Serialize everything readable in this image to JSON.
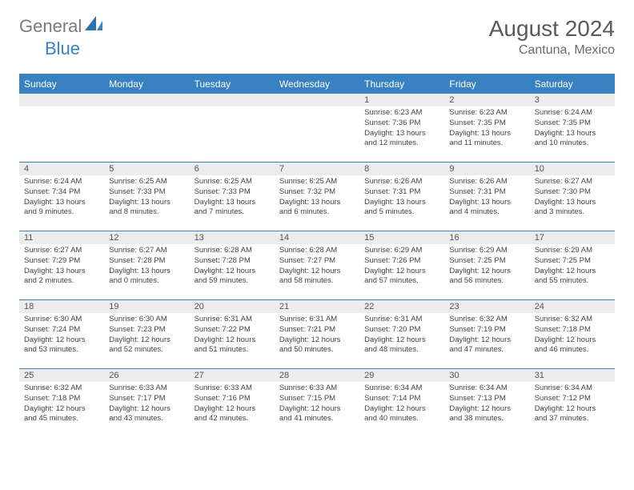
{
  "brand": {
    "name1": "General",
    "name2": "Blue"
  },
  "title": "August 2024",
  "location": "Cantuna, Mexico",
  "colors": {
    "accent": "#3a81c2",
    "header_text": "#ffffff",
    "daynum_bg": "#ececec",
    "text": "#444444",
    "background": "#ffffff",
    "logo_gray": "#7a7a7a"
  },
  "days_of_week": [
    "Sunday",
    "Monday",
    "Tuesday",
    "Wednesday",
    "Thursday",
    "Friday",
    "Saturday"
  ],
  "weeks": [
    [
      {
        "n": "",
        "sunrise": "",
        "sunset": "",
        "daylight": ""
      },
      {
        "n": "",
        "sunrise": "",
        "sunset": "",
        "daylight": ""
      },
      {
        "n": "",
        "sunrise": "",
        "sunset": "",
        "daylight": ""
      },
      {
        "n": "",
        "sunrise": "",
        "sunset": "",
        "daylight": ""
      },
      {
        "n": "1",
        "sunrise": "Sunrise: 6:23 AM",
        "sunset": "Sunset: 7:36 PM",
        "daylight": "Daylight: 13 hours and 12 minutes."
      },
      {
        "n": "2",
        "sunrise": "Sunrise: 6:23 AM",
        "sunset": "Sunset: 7:35 PM",
        "daylight": "Daylight: 13 hours and 11 minutes."
      },
      {
        "n": "3",
        "sunrise": "Sunrise: 6:24 AM",
        "sunset": "Sunset: 7:35 PM",
        "daylight": "Daylight: 13 hours and 10 minutes."
      }
    ],
    [
      {
        "n": "4",
        "sunrise": "Sunrise: 6:24 AM",
        "sunset": "Sunset: 7:34 PM",
        "daylight": "Daylight: 13 hours and 9 minutes."
      },
      {
        "n": "5",
        "sunrise": "Sunrise: 6:25 AM",
        "sunset": "Sunset: 7:33 PM",
        "daylight": "Daylight: 13 hours and 8 minutes."
      },
      {
        "n": "6",
        "sunrise": "Sunrise: 6:25 AM",
        "sunset": "Sunset: 7:33 PM",
        "daylight": "Daylight: 13 hours and 7 minutes."
      },
      {
        "n": "7",
        "sunrise": "Sunrise: 6:25 AM",
        "sunset": "Sunset: 7:32 PM",
        "daylight": "Daylight: 13 hours and 6 minutes."
      },
      {
        "n": "8",
        "sunrise": "Sunrise: 6:26 AM",
        "sunset": "Sunset: 7:31 PM",
        "daylight": "Daylight: 13 hours and 5 minutes."
      },
      {
        "n": "9",
        "sunrise": "Sunrise: 6:26 AM",
        "sunset": "Sunset: 7:31 PM",
        "daylight": "Daylight: 13 hours and 4 minutes."
      },
      {
        "n": "10",
        "sunrise": "Sunrise: 6:27 AM",
        "sunset": "Sunset: 7:30 PM",
        "daylight": "Daylight: 13 hours and 3 minutes."
      }
    ],
    [
      {
        "n": "11",
        "sunrise": "Sunrise: 6:27 AM",
        "sunset": "Sunset: 7:29 PM",
        "daylight": "Daylight: 13 hours and 2 minutes."
      },
      {
        "n": "12",
        "sunrise": "Sunrise: 6:27 AM",
        "sunset": "Sunset: 7:28 PM",
        "daylight": "Daylight: 13 hours and 0 minutes."
      },
      {
        "n": "13",
        "sunrise": "Sunrise: 6:28 AM",
        "sunset": "Sunset: 7:28 PM",
        "daylight": "Daylight: 12 hours and 59 minutes."
      },
      {
        "n": "14",
        "sunrise": "Sunrise: 6:28 AM",
        "sunset": "Sunset: 7:27 PM",
        "daylight": "Daylight: 12 hours and 58 minutes."
      },
      {
        "n": "15",
        "sunrise": "Sunrise: 6:29 AM",
        "sunset": "Sunset: 7:26 PM",
        "daylight": "Daylight: 12 hours and 57 minutes."
      },
      {
        "n": "16",
        "sunrise": "Sunrise: 6:29 AM",
        "sunset": "Sunset: 7:25 PM",
        "daylight": "Daylight: 12 hours and 56 minutes."
      },
      {
        "n": "17",
        "sunrise": "Sunrise: 6:29 AM",
        "sunset": "Sunset: 7:25 PM",
        "daylight": "Daylight: 12 hours and 55 minutes."
      }
    ],
    [
      {
        "n": "18",
        "sunrise": "Sunrise: 6:30 AM",
        "sunset": "Sunset: 7:24 PM",
        "daylight": "Daylight: 12 hours and 53 minutes."
      },
      {
        "n": "19",
        "sunrise": "Sunrise: 6:30 AM",
        "sunset": "Sunset: 7:23 PM",
        "daylight": "Daylight: 12 hours and 52 minutes."
      },
      {
        "n": "20",
        "sunrise": "Sunrise: 6:31 AM",
        "sunset": "Sunset: 7:22 PM",
        "daylight": "Daylight: 12 hours and 51 minutes."
      },
      {
        "n": "21",
        "sunrise": "Sunrise: 6:31 AM",
        "sunset": "Sunset: 7:21 PM",
        "daylight": "Daylight: 12 hours and 50 minutes."
      },
      {
        "n": "22",
        "sunrise": "Sunrise: 6:31 AM",
        "sunset": "Sunset: 7:20 PM",
        "daylight": "Daylight: 12 hours and 48 minutes."
      },
      {
        "n": "23",
        "sunrise": "Sunrise: 6:32 AM",
        "sunset": "Sunset: 7:19 PM",
        "daylight": "Daylight: 12 hours and 47 minutes."
      },
      {
        "n": "24",
        "sunrise": "Sunrise: 6:32 AM",
        "sunset": "Sunset: 7:18 PM",
        "daylight": "Daylight: 12 hours and 46 minutes."
      }
    ],
    [
      {
        "n": "25",
        "sunrise": "Sunrise: 6:32 AM",
        "sunset": "Sunset: 7:18 PM",
        "daylight": "Daylight: 12 hours and 45 minutes."
      },
      {
        "n": "26",
        "sunrise": "Sunrise: 6:33 AM",
        "sunset": "Sunset: 7:17 PM",
        "daylight": "Daylight: 12 hours and 43 minutes."
      },
      {
        "n": "27",
        "sunrise": "Sunrise: 6:33 AM",
        "sunset": "Sunset: 7:16 PM",
        "daylight": "Daylight: 12 hours and 42 minutes."
      },
      {
        "n": "28",
        "sunrise": "Sunrise: 6:33 AM",
        "sunset": "Sunset: 7:15 PM",
        "daylight": "Daylight: 12 hours and 41 minutes."
      },
      {
        "n": "29",
        "sunrise": "Sunrise: 6:34 AM",
        "sunset": "Sunset: 7:14 PM",
        "daylight": "Daylight: 12 hours and 40 minutes."
      },
      {
        "n": "30",
        "sunrise": "Sunrise: 6:34 AM",
        "sunset": "Sunset: 7:13 PM",
        "daylight": "Daylight: 12 hours and 38 minutes."
      },
      {
        "n": "31",
        "sunrise": "Sunrise: 6:34 AM",
        "sunset": "Sunset: 7:12 PM",
        "daylight": "Daylight: 12 hours and 37 minutes."
      }
    ]
  ]
}
